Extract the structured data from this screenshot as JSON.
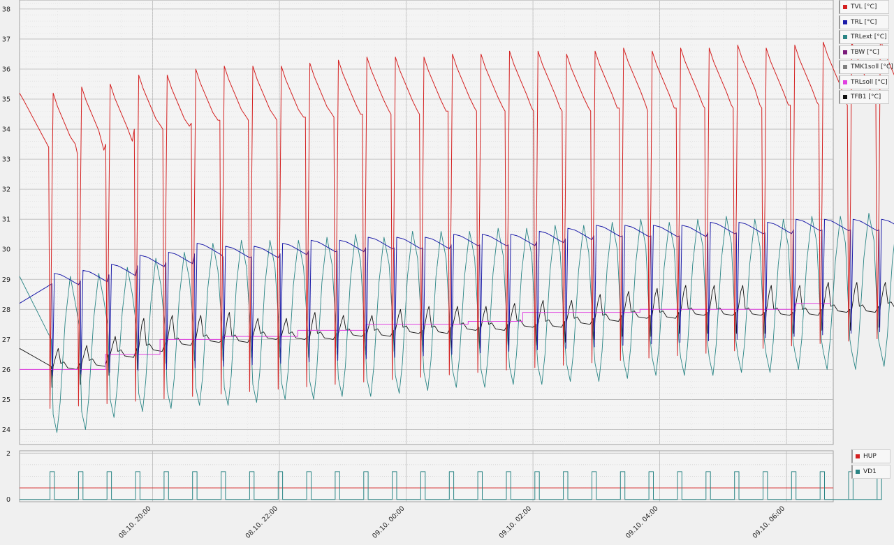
{
  "chart_data": [
    {
      "type": "line",
      "ylim": [
        23.5,
        38.3
      ],
      "yticks": [
        24,
        25,
        26,
        27,
        28,
        29,
        30,
        31,
        32,
        33,
        34,
        35,
        36,
        37,
        38
      ],
      "grid": true,
      "legend": "right",
      "series": [
        {
          "name": "TVL [°C]",
          "color": "#d42020"
        },
        {
          "name": "TRL [°C]",
          "color": "#1a1aa8"
        },
        {
          "name": "TRLext [°C]",
          "color": "#2a8585"
        },
        {
          "name": "TBW [°C]",
          "color": "#7a1a7a"
        },
        {
          "name": "TMK1soll [°C]",
          "color": "#808080"
        },
        {
          "name": "TRLsoll [°C]",
          "color": "#e040e0"
        },
        {
          "name": "TFB1 [°C]",
          "color": "#111111"
        }
      ],
      "cycles": {
        "count": 30,
        "tvl_peak": [
          35.2,
          35.4,
          35.5,
          35.8,
          35.8,
          36.0,
          36.1,
          36.1,
          36.1,
          36.2,
          36.3,
          36.4,
          36.4,
          36.4,
          36.5,
          36.5,
          36.6,
          36.6,
          36.5,
          36.6,
          36.7,
          36.6,
          36.7,
          36.7,
          36.8,
          36.7,
          36.8,
          36.9,
          36.9,
          37.0
        ],
        "tvl_min": [
          33.4,
          33.2,
          33.5,
          34.0,
          34.0,
          34.2,
          34.3,
          34.3,
          34.3,
          34.4,
          34.4,
          34.5,
          34.5,
          34.5,
          34.6,
          34.6,
          34.6,
          34.6,
          34.6,
          34.6,
          34.7,
          34.6,
          34.7,
          34.7,
          34.7,
          34.7,
          34.8,
          34.8,
          34.8,
          34.9
        ],
        "trl_peak": [
          29.2,
          29.3,
          29.5,
          29.8,
          29.9,
          30.2,
          30.1,
          30.1,
          30.2,
          30.3,
          30.3,
          30.4,
          30.4,
          30.4,
          30.5,
          30.5,
          30.5,
          30.6,
          30.7,
          30.8,
          30.8,
          30.8,
          30.8,
          30.9,
          30.9,
          30.9,
          31.0,
          31.0,
          31.0,
          31.0
        ],
        "trlext_peak": [
          29.1,
          29.2,
          29.4,
          29.7,
          29.9,
          30.2,
          30.3,
          30.3,
          30.3,
          30.4,
          30.5,
          30.4,
          30.6,
          30.6,
          30.6,
          30.7,
          30.7,
          30.8,
          30.8,
          30.9,
          31.0,
          30.9,
          31.0,
          31.1,
          31.0,
          31.0,
          31.1,
          31.1,
          31.2,
          31.1
        ],
        "trlext_min": [
          23.9,
          24.0,
          24.4,
          24.6,
          24.7,
          24.8,
          24.8,
          24.9,
          25.0,
          25.0,
          25.1,
          25.1,
          25.2,
          25.3,
          25.4,
          25.4,
          25.5,
          25.5,
          25.6,
          25.6,
          25.7,
          25.8,
          25.8,
          25.8,
          25.9,
          25.9,
          26.0,
          26.0,
          26.0,
          26.1
        ],
        "tfb1_peak": [
          26.7,
          26.8,
          27.1,
          27.7,
          27.8,
          27.8,
          27.9,
          27.7,
          27.7,
          27.9,
          27.8,
          27.8,
          28.0,
          28.1,
          28.1,
          28.1,
          28.2,
          28.3,
          28.3,
          28.5,
          28.6,
          28.7,
          28.8,
          28.8,
          28.8,
          28.8,
          28.8,
          28.9,
          28.9,
          28.9
        ],
        "tfb1_base": [
          26.0,
          26.1,
          26.4,
          26.6,
          26.8,
          26.9,
          26.9,
          27.0,
          27.0,
          27.0,
          27.1,
          27.1,
          27.2,
          27.2,
          27.3,
          27.3,
          27.4,
          27.4,
          27.5,
          27.6,
          27.7,
          27.7,
          27.8,
          27.8,
          27.8,
          27.8,
          27.8,
          27.9,
          27.9,
          28.0
        ]
      },
      "trlsoll": [
        [
          0,
          26.0
        ],
        [
          3.8,
          26.0
        ],
        [
          6.3,
          26.5
        ],
        [
          10.3,
          27.0
        ],
        [
          14.9,
          27.1
        ],
        [
          20.4,
          27.3
        ],
        [
          25.4,
          27.5
        ],
        [
          32.9,
          27.6
        ],
        [
          36.9,
          27.9
        ],
        [
          45.5,
          28.0
        ],
        [
          56.9,
          28.2
        ],
        [
          59.5,
          28.2
        ]
      ]
    },
    {
      "type": "line",
      "ylim": [
        -0.1,
        2.1
      ],
      "yticks": [
        0,
        2
      ],
      "grid": true,
      "legend": "right",
      "series": [
        {
          "name": "HUP",
          "color": "#d42020",
          "constant": 0.5
        },
        {
          "name": "VD1",
          "color": "#2a8585",
          "pulse_high": 1.2
        }
      ]
    }
  ],
  "x_axis": {
    "ticks": [
      "08.10. 20:00",
      "08.10. 22:00",
      "09.10. 00:00",
      "09.10. 02:00",
      "09.10. 04:00",
      "09.10. 06:00"
    ]
  }
}
